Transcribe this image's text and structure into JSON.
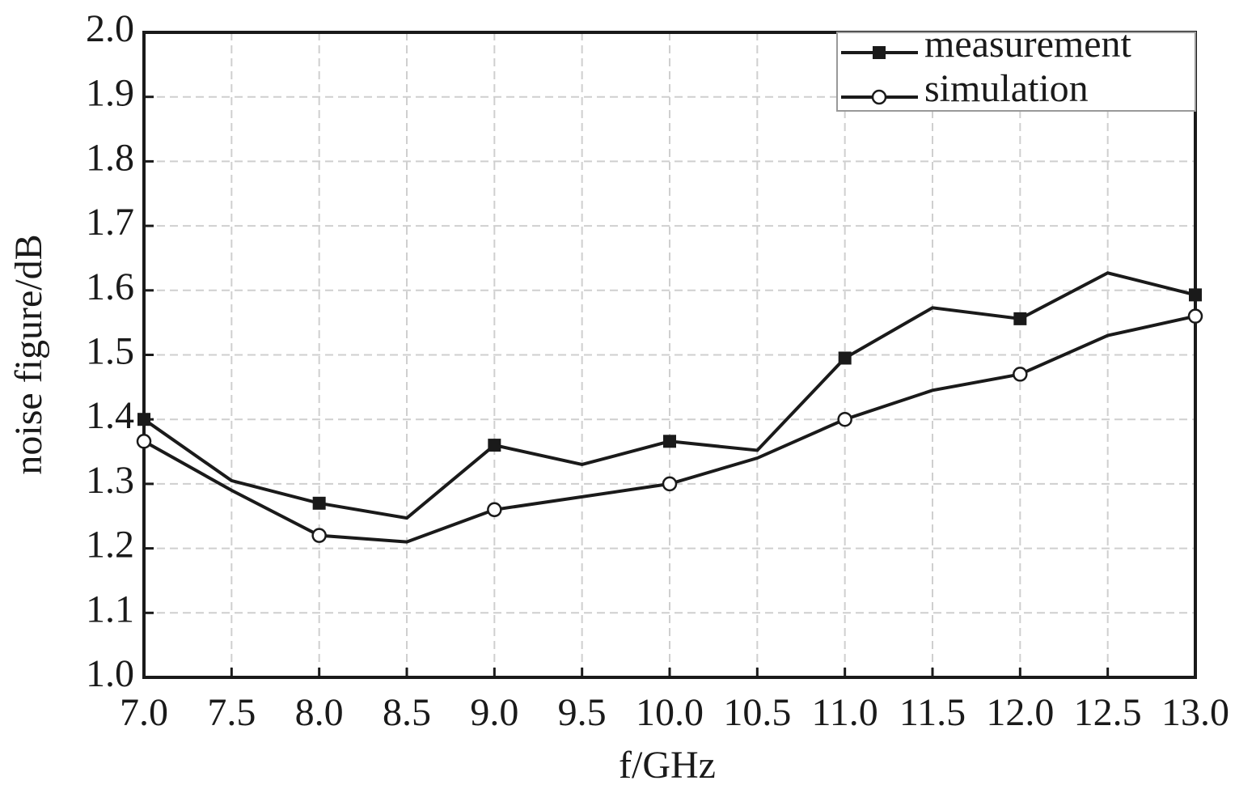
{
  "chart_data": {
    "type": "line",
    "x_label": "f/GHz",
    "y_label": "noise figure/dB",
    "x": [
      7.0,
      7.5,
      8.0,
      8.5,
      9.0,
      9.5,
      10.0,
      10.5,
      11.0,
      11.5,
      12.0,
      12.5,
      13.0
    ],
    "series": [
      {
        "name": "measurement",
        "color": "#1a1a1a",
        "marker": "square",
        "values": [
          1.4,
          1.305,
          1.27,
          1.247,
          1.36,
          1.33,
          1.366,
          1.352,
          1.495,
          1.573,
          1.556,
          1.627,
          1.593
        ]
      },
      {
        "name": "simulation",
        "color": "#1a1a1a",
        "marker": "circle",
        "values": [
          1.366,
          1.29,
          1.22,
          1.21,
          1.26,
          1.28,
          1.3,
          1.34,
          1.4,
          1.445,
          1.47,
          1.53,
          1.56
        ]
      }
    ],
    "xlim": [
      7.0,
      13.0
    ],
    "xticks": [
      {
        "value": 7,
        "label": "7.0"
      },
      7.5,
      {
        "value": 8,
        "label": "8.0"
      },
      8.5,
      {
        "value": 9,
        "label": "9.0"
      },
      9.5,
      {
        "value": 10,
        "label": "10.0"
      },
      10.5,
      {
        "value": 11,
        "label": "11.0"
      },
      11.5,
      {
        "value": 12,
        "label": "12.0"
      },
      12.5,
      {
        "value": 13,
        "label": "13.0"
      }
    ],
    "ylim": [
      1.0,
      2.0
    ],
    "yticks": [
      {
        "value": 1,
        "label": "1.0"
      },
      1.1,
      1.2,
      1.3,
      1.4,
      1.5,
      1.6,
      1.7,
      1.8,
      1.9,
      {
        "value": 2,
        "label": "2.0"
      }
    ],
    "grid": true,
    "legend": "upper right"
  }
}
